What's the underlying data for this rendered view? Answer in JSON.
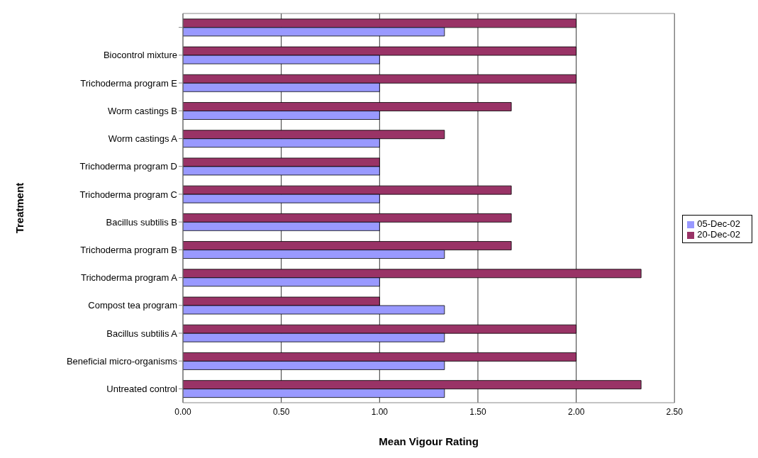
{
  "chart_data": {
    "type": "bar",
    "orientation": "horizontal",
    "xlabel": "Mean Vigour Rating",
    "ylabel": "Treatment",
    "categories": [
      null,
      "Biocontrol mixture",
      "Trichoderma program E",
      "Worm castings B",
      "Worm castings A",
      "Trichoderma program D",
      "Trichoderma program C",
      "Bacillus subtilis B",
      "Trichoderma program B",
      "Trichoderma  program A",
      "Compost tea program",
      "Bacillus subtilis A",
      "Beneficial micro-organisms",
      "Untreated control"
    ],
    "series": [
      {
        "name": "20-Dec-02",
        "color": "#993366",
        "values": [
          2.0,
          2.0,
          2.0,
          1.67,
          1.33,
          1.0,
          1.67,
          1.67,
          1.67,
          2.33,
          1.0,
          2.0,
          2.0,
          2.33
        ]
      },
      {
        "name": "05-Dec-02",
        "color": "#9999ff",
        "values": [
          1.33,
          1.0,
          1.0,
          1.0,
          1.0,
          1.0,
          1.0,
          1.0,
          1.33,
          1.0,
          1.33,
          1.33,
          1.33,
          1.33
        ]
      }
    ],
    "xlim": [
      0,
      2.5
    ],
    "xticks": [
      {
        "value": 0,
        "label": "0.00"
      },
      {
        "value": 0.5,
        "label": "0.50"
      },
      {
        "value": 1,
        "label": "1.00"
      },
      {
        "value": 1.5,
        "label": "1.50"
      },
      {
        "value": 2,
        "label": "2.00"
      },
      {
        "value": 2.5,
        "label": "2.50"
      }
    ],
    "grid": "x",
    "legend": "right"
  }
}
